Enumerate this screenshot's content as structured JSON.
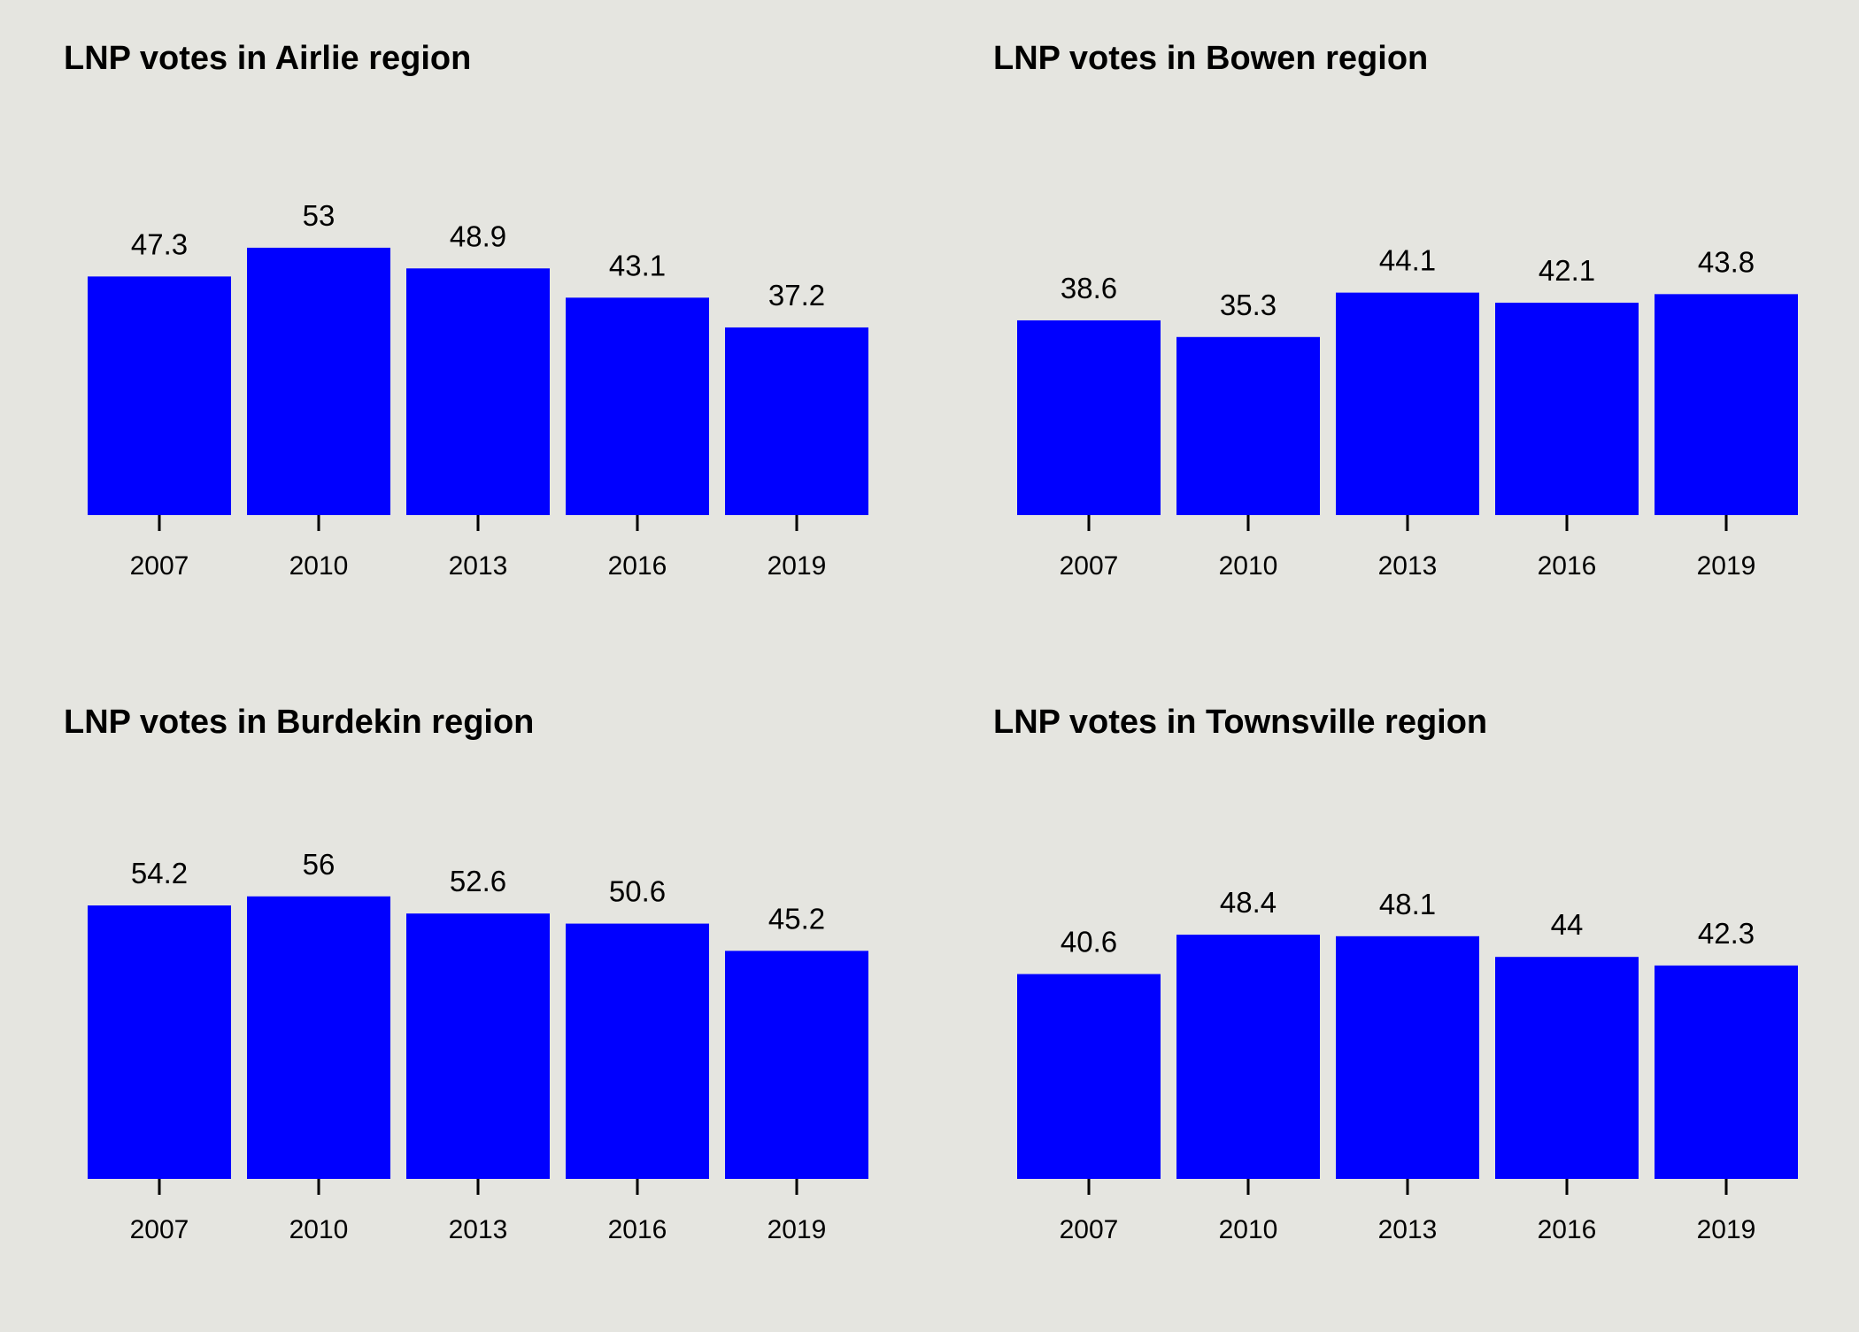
{
  "colors": {
    "background": "#e5e5e0",
    "bar": "#0000ff",
    "text": "#000000"
  },
  "chart_data": [
    {
      "type": "bar",
      "title": "LNP votes in Airlie region",
      "categories": [
        "2007",
        "2010",
        "2013",
        "2016",
        "2019"
      ],
      "values": [
        47.3,
        53,
        48.9,
        43.1,
        37.2
      ],
      "data_labels": [
        "47.3",
        "53",
        "48.9",
        "43.1",
        "37.2"
      ],
      "ylim": [
        0,
        60
      ],
      "grid": false
    },
    {
      "type": "bar",
      "title": "LNP votes in Bowen region",
      "categories": [
        "2007",
        "2010",
        "2013",
        "2016",
        "2019"
      ],
      "values": [
        38.6,
        35.3,
        44.1,
        42.1,
        43.8
      ],
      "data_labels": [
        "38.6",
        "35.3",
        "44.1",
        "42.1",
        "43.8"
      ],
      "ylim": [
        0,
        60
      ],
      "grid": false
    },
    {
      "type": "bar",
      "title": "LNP votes in Burdekin region",
      "categories": [
        "2007",
        "2010",
        "2013",
        "2016",
        "2019"
      ],
      "values": [
        54.2,
        56,
        52.6,
        50.6,
        45.2
      ],
      "data_labels": [
        "54.2",
        "56",
        "52.6",
        "50.6",
        "45.2"
      ],
      "ylim": [
        0,
        60
      ],
      "grid": false
    },
    {
      "type": "bar",
      "title": "LNP votes in Townsville region",
      "categories": [
        "2007",
        "2010",
        "2013",
        "2016",
        "2019"
      ],
      "values": [
        40.6,
        48.4,
        48.1,
        44,
        42.3
      ],
      "data_labels": [
        "40.6",
        "48.4",
        "48.1",
        "44",
        "42.3"
      ],
      "ylim": [
        0,
        60
      ],
      "grid": false
    }
  ]
}
